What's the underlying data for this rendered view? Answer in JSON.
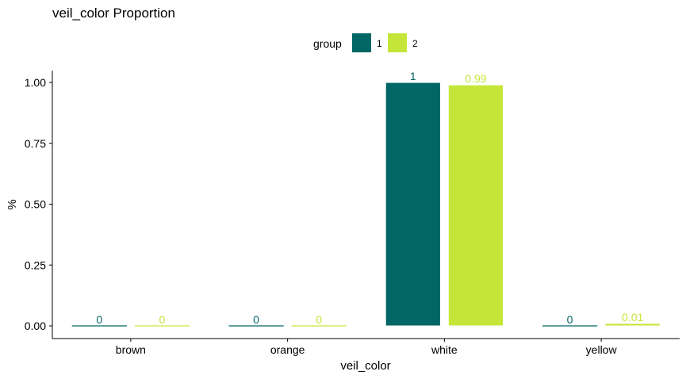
{
  "chart_data": {
    "type": "bar",
    "title": "veil_color Proportion",
    "xlabel": "veil_color",
    "ylabel": "%",
    "categories": [
      "brown",
      "orange",
      "white",
      "yellow"
    ],
    "ylim": [
      0,
      1
    ],
    "yticks": [
      "0.00",
      "0.25",
      "0.50",
      "0.75",
      "1.00"
    ],
    "grid": false,
    "legend": {
      "title": "group",
      "position": "top"
    },
    "series": [
      {
        "name": "1",
        "color": "#006666",
        "values": [
          0,
          0,
          1,
          0
        ],
        "labels": [
          "0",
          "0",
          "1",
          "0"
        ]
      },
      {
        "name": "2",
        "color": "#C5E639",
        "values": [
          0,
          0,
          0.99,
          0.01
        ],
        "labels": [
          "0",
          "0",
          "0.99",
          "0.01"
        ]
      }
    ]
  }
}
